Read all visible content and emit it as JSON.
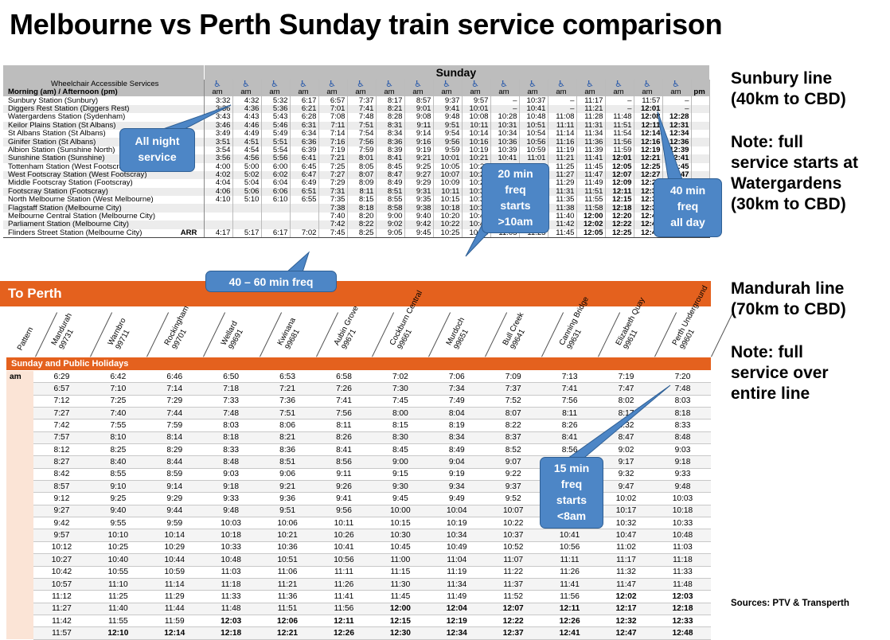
{
  "title": "Melbourne vs Perth Sunday train service comparison",
  "melbourne": {
    "day_label": "Sunday",
    "header_rows": [
      "Wheelchair Accessible Services",
      "Morning (am) / Afternoon (pm)"
    ],
    "wheelchair_icon": "wheelchair-icon",
    "ampm": [
      "am",
      "am",
      "am",
      "am",
      "am",
      "am",
      "am",
      "am",
      "am",
      "am",
      "am",
      "am",
      "am",
      "am",
      "am",
      "am",
      "am",
      "pm"
    ],
    "rows": [
      {
        "station": "Sunbury Station (Sunbury)",
        "arr": "",
        "times": [
          "3:32",
          "4:32",
          "5:32",
          "6:17",
          "6:57",
          "7:37",
          "8:17",
          "8:57",
          "9:37",
          "9:57",
          "–",
          "10:37",
          "–",
          "11:17",
          "–",
          "11:57",
          "–",
          ""
        ]
      },
      {
        "station": "Diggers Rest Station (Diggers Rest)",
        "arr": "",
        "times": [
          "3:36",
          "4:36",
          "5:36",
          "6:21",
          "7:01",
          "7:41",
          "8:21",
          "9:01",
          "9:41",
          "10:01",
          "–",
          "10:41",
          "–",
          "11:21",
          "–",
          "12:01",
          "–",
          ""
        ]
      },
      {
        "station": "Watergardens Station (Sydenham)",
        "arr": "",
        "times": [
          "3:43",
          "4:43",
          "5:43",
          "6:28",
          "7:08",
          "7:48",
          "8:28",
          "9:08",
          "9:48",
          "10:08",
          "10:28",
          "10:48",
          "11:08",
          "11:28",
          "11:48",
          "12:08",
          "12:28",
          ""
        ]
      },
      {
        "station": "Keilor Plains Station (St Albans)",
        "arr": "",
        "times": [
          "3:46",
          "4:46",
          "5:46",
          "6:31",
          "7:11",
          "7:51",
          "8:31",
          "9:11",
          "9:51",
          "10:11",
          "10:31",
          "10:51",
          "11:11",
          "11:31",
          "11:51",
          "12:11",
          "12:31",
          ""
        ]
      },
      {
        "station": "St Albans Station (St Albans)",
        "arr": "",
        "times": [
          "3:49",
          "4:49",
          "5:49",
          "6:34",
          "7:14",
          "7:54",
          "8:34",
          "9:14",
          "9:54",
          "10:14",
          "10:34",
          "10:54",
          "11:14",
          "11:34",
          "11:54",
          "12:14",
          "12:34",
          ""
        ]
      },
      {
        "station": "Ginifer Station (St Albans)",
        "arr": "",
        "times": [
          "3:51",
          "4:51",
          "5:51",
          "6:36",
          "7:16",
          "7:56",
          "8:36",
          "9:16",
          "9:56",
          "10:16",
          "10:36",
          "10:56",
          "11:16",
          "11:36",
          "11:56",
          "12:16",
          "12:36",
          ""
        ]
      },
      {
        "station": "Albion Station (Sunshine North)",
        "arr": "",
        "times": [
          "3:54",
          "4:54",
          "5:54",
          "6:39",
          "7:19",
          "7:59",
          "8:39",
          "9:19",
          "9:59",
          "10:19",
          "10:39",
          "10:59",
          "11:19",
          "11:39",
          "11:59",
          "12:19",
          "12:39",
          ""
        ]
      },
      {
        "station": "Sunshine Station (Sunshine)",
        "arr": "",
        "times": [
          "3:56",
          "4:56",
          "5:56",
          "6:41",
          "7:21",
          "8:01",
          "8:41",
          "9:21",
          "10:01",
          "10:21",
          "10:41",
          "11:01",
          "11:21",
          "11:41",
          "12:01",
          "12:21",
          "12:41",
          ""
        ]
      },
      {
        "station": "Tottenham Station (West Footscray)",
        "arr": "",
        "times": [
          "4:00",
          "5:00",
          "6:00",
          "6:45",
          "7:25",
          "8:05",
          "8:45",
          "9:25",
          "10:05",
          "10:25",
          "10:45",
          "11:05",
          "11:25",
          "11:45",
          "12:05",
          "12:25",
          "12:45",
          ""
        ]
      },
      {
        "station": "West Footscray Station (West Footscray)",
        "arr": "",
        "times": [
          "4:02",
          "5:02",
          "6:02",
          "6:47",
          "7:27",
          "8:07",
          "8:47",
          "9:27",
          "10:07",
          "10:27",
          "10:47",
          "11:07",
          "11:27",
          "11:47",
          "12:07",
          "12:27",
          "12:47",
          ""
        ]
      },
      {
        "station": "Middle Footscray Station (Footscray)",
        "arr": "",
        "times": [
          "4:04",
          "5:04",
          "6:04",
          "6:49",
          "7:29",
          "8:09",
          "8:49",
          "9:29",
          "10:09",
          "10:29",
          "10:49",
          "11:09",
          "11:29",
          "11:49",
          "12:09",
          "12:29",
          "12:49",
          ""
        ]
      },
      {
        "station": "Footscray Station (Footscray)",
        "arr": "",
        "times": [
          "4:06",
          "5:06",
          "6:06",
          "6:51",
          "7:31",
          "8:11",
          "8:51",
          "9:31",
          "10:11",
          "10:31",
          "10:51",
          "11:11",
          "11:31",
          "11:51",
          "12:11",
          "12:31",
          "12:51",
          ""
        ]
      },
      {
        "station": "North Melbourne Station (West Melbourne)",
        "arr": "",
        "times": [
          "4:10",
          "5:10",
          "6:10",
          "6:55",
          "7:35",
          "8:15",
          "8:55",
          "9:35",
          "10:15",
          "10:35",
          "10:55",
          "11:15",
          "11:35",
          "11:55",
          "12:15",
          "12:35",
          "12:55",
          ""
        ]
      },
      {
        "station": "Flagstaff Station (Melbourne City)",
        "arr": "",
        "times": [
          "",
          "",
          "",
          "",
          "7:38",
          "8:18",
          "8:58",
          "9:38",
          "10:18",
          "10:38",
          "10:58",
          "11:18",
          "11:38",
          "11:58",
          "12:18",
          "12:38",
          "12:58",
          ""
        ]
      },
      {
        "station": "Melbourne Central Station (Melbourne City)",
        "arr": "",
        "times": [
          "",
          "",
          "",
          "",
          "7:40",
          "8:20",
          "9:00",
          "9:40",
          "10:20",
          "10:40",
          "11:00",
          "11:20",
          "11:40",
          "12:00",
          "12:20",
          "12:40",
          "1:00",
          ""
        ]
      },
      {
        "station": "Parliament Station (Melbourne City)",
        "arr": "",
        "times": [
          "",
          "",
          "",
          "",
          "7:42",
          "8:22",
          "9:02",
          "9:42",
          "10:22",
          "10:42",
          "11:02",
          "11:22",
          "11:42",
          "12:02",
          "12:22",
          "12:42",
          "1:02",
          ""
        ]
      },
      {
        "station": "Flinders Street Station (Melbourne City)",
        "arr": "ARR",
        "times": [
          "4:17",
          "5:17",
          "6:17",
          "7:02",
          "7:45",
          "8:25",
          "9:05",
          "9:45",
          "10:25",
          "10:45",
          "11:05",
          "11:25",
          "11:45",
          "12:05",
          "12:25",
          "12:45",
          "1:05",
          ""
        ]
      }
    ]
  },
  "perth": {
    "banner": "To Perth",
    "pattern_label": "Pattern",
    "stops": [
      {
        "name": "Mandurah",
        "code": "99731"
      },
      {
        "name": "Warnbro",
        "code": "99711"
      },
      {
        "name": "Rockingham",
        "code": "99701"
      },
      {
        "name": "Wellard",
        "code": "99691"
      },
      {
        "name": "Kwinana",
        "code": "99681"
      },
      {
        "name": "Aubin Grove",
        "code": "99671"
      },
      {
        "name": "Cockburn Central",
        "code": "99661"
      },
      {
        "name": "Murdoch",
        "code": "99651"
      },
      {
        "name": "Bull Creek",
        "code": "99641"
      },
      {
        "name": "Canning Bridge",
        "code": "99631"
      },
      {
        "name": "Elizabeth Quay",
        "code": "99611"
      },
      {
        "name": "Perth Underground",
        "code": "99601"
      }
    ],
    "section_label": "Sunday and Public Holidays",
    "am_label": "am",
    "rows": [
      [
        "6:29",
        "6:42",
        "6:46",
        "6:50",
        "6:53",
        "6:58",
        "7:02",
        "7:06",
        "7:09",
        "7:13",
        "7:19",
        "7:20"
      ],
      [
        "6:57",
        "7:10",
        "7:14",
        "7:18",
        "7:21",
        "7:26",
        "7:30",
        "7:34",
        "7:37",
        "7:41",
        "7:47",
        "7:48"
      ],
      [
        "7:12",
        "7:25",
        "7:29",
        "7:33",
        "7:36",
        "7:41",
        "7:45",
        "7:49",
        "7:52",
        "7:56",
        "8:02",
        "8:03"
      ],
      [
        "7:27",
        "7:40",
        "7:44",
        "7:48",
        "7:51",
        "7:56",
        "8:00",
        "8:04",
        "8:07",
        "8:11",
        "8:17",
        "8:18"
      ],
      [
        "7:42",
        "7:55",
        "7:59",
        "8:03",
        "8:06",
        "8:11",
        "8:15",
        "8:19",
        "8:22",
        "8:26",
        "8:32",
        "8:33"
      ],
      [
        "7:57",
        "8:10",
        "8:14",
        "8:18",
        "8:21",
        "8:26",
        "8:30",
        "8:34",
        "8:37",
        "8:41",
        "8:47",
        "8:48"
      ],
      [
        "8:12",
        "8:25",
        "8:29",
        "8:33",
        "8:36",
        "8:41",
        "8:45",
        "8:49",
        "8:52",
        "8:56",
        "9:02",
        "9:03"
      ],
      [
        "8:27",
        "8:40",
        "8:44",
        "8:48",
        "8:51",
        "8:56",
        "9:00",
        "9:04",
        "9:07",
        "9:11",
        "9:17",
        "9:18"
      ],
      [
        "8:42",
        "8:55",
        "8:59",
        "9:03",
        "9:06",
        "9:11",
        "9:15",
        "9:19",
        "9:22",
        "9:26",
        "9:32",
        "9:33"
      ],
      [
        "8:57",
        "9:10",
        "9:14",
        "9:18",
        "9:21",
        "9:26",
        "9:30",
        "9:34",
        "9:37",
        "9:41",
        "9:47",
        "9:48"
      ],
      [
        "9:12",
        "9:25",
        "9:29",
        "9:33",
        "9:36",
        "9:41",
        "9:45",
        "9:49",
        "9:52",
        "9:56",
        "10:02",
        "10:03"
      ],
      [
        "9:27",
        "9:40",
        "9:44",
        "9:48",
        "9:51",
        "9:56",
        "10:00",
        "10:04",
        "10:07",
        "10:11",
        "10:17",
        "10:18"
      ],
      [
        "9:42",
        "9:55",
        "9:59",
        "10:03",
        "10:06",
        "10:11",
        "10:15",
        "10:19",
        "10:22",
        "10:26",
        "10:32",
        "10:33"
      ],
      [
        "9:57",
        "10:10",
        "10:14",
        "10:18",
        "10:21",
        "10:26",
        "10:30",
        "10:34",
        "10:37",
        "10:41",
        "10:47",
        "10:48"
      ],
      [
        "10:12",
        "10:25",
        "10:29",
        "10:33",
        "10:36",
        "10:41",
        "10:45",
        "10:49",
        "10:52",
        "10:56",
        "11:02",
        "11:03"
      ],
      [
        "10:27",
        "10:40",
        "10:44",
        "10:48",
        "10:51",
        "10:56",
        "11:00",
        "11:04",
        "11:07",
        "11:11",
        "11:17",
        "11:18"
      ],
      [
        "10:42",
        "10:55",
        "10:59",
        "11:03",
        "11:06",
        "11:11",
        "11:15",
        "11:19",
        "11:22",
        "11:26",
        "11:32",
        "11:33"
      ],
      [
        "10:57",
        "11:10",
        "11:14",
        "11:18",
        "11:21",
        "11:26",
        "11:30",
        "11:34",
        "11:37",
        "11:41",
        "11:47",
        "11:48"
      ],
      [
        "11:12",
        "11:25",
        "11:29",
        "11:33",
        "11:36",
        "11:41",
        "11:45",
        "11:49",
        "11:52",
        "11:56",
        "12:02",
        "12:03"
      ],
      [
        "11:27",
        "11:40",
        "11:44",
        "11:48",
        "11:51",
        "11:56",
        "12:00",
        "12:04",
        "12:07",
        "12:11",
        "12:17",
        "12:18"
      ],
      [
        "11:42",
        "11:55",
        "11:59",
        "12:03",
        "12:06",
        "12:11",
        "12:15",
        "12:19",
        "12:22",
        "12:26",
        "12:32",
        "12:33"
      ],
      [
        "11:57",
        "12:10",
        "12:14",
        "12:18",
        "12:21",
        "12:26",
        "12:30",
        "12:34",
        "12:37",
        "12:41",
        "12:47",
        "12:48"
      ]
    ]
  },
  "notes": {
    "sunbury": "Sunbury line\n(40km to CBD)",
    "sunbury_note": "Note: full\nservice starts at\nWatergardens\n(30km to CBD)",
    "mandurah": "Mandurah line\n(70km to CBD)",
    "mandurah_note": "Note: full\nservice over\nentire line",
    "sources": "Sources: PTV & Transperth"
  },
  "callouts": {
    "all_night": "All night\nservice",
    "freq_40_60": "40 – 60 min freq",
    "freq_20": "20 min\nfreq\nstarts\n>10am",
    "freq_40_all_day": "40 min\nfreq\nall day",
    "freq_15": "15 min\nfreq\nstarts\n<8am"
  },
  "colors": {
    "perth_orange": "#e4611e",
    "callout_blue": "#4d86c6",
    "header_grey": "#bdbdbd"
  }
}
